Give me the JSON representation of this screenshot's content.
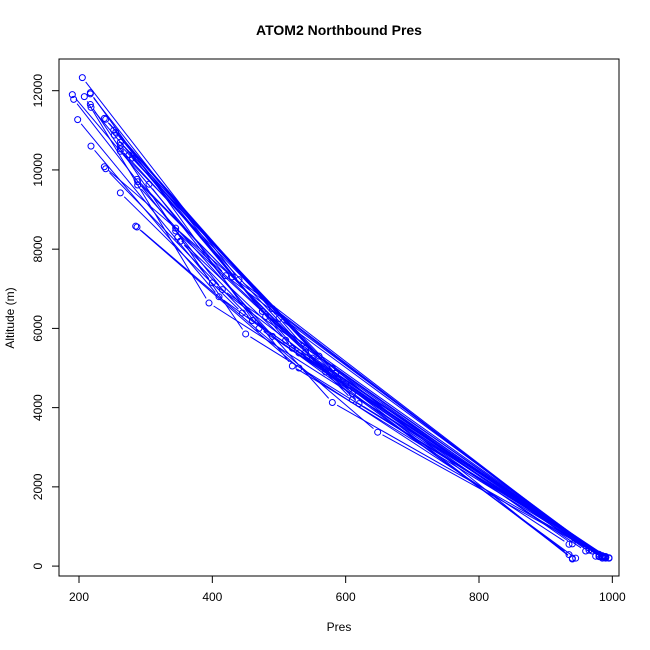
{
  "chart_data": {
    "type": "scatter",
    "title": "ATOM2 Northbound Pres",
    "xlabel": "Pres",
    "ylabel": "Altitude (m)",
    "xlim": [
      170,
      1010
    ],
    "ylim": [
      -250,
      12800
    ],
    "x_ticks": [
      200,
      400,
      600,
      800,
      1000
    ],
    "y_ticks": [
      0,
      2000,
      4000,
      6000,
      8000,
      10000,
      12000
    ],
    "color": "#0000ff",
    "grid": false,
    "legend": "none",
    "series": [
      {
        "points": [
          [
            205,
            12330
          ],
          [
            440,
            7230
          ],
          [
            980,
            260
          ]
        ]
      },
      {
        "points": [
          [
            190,
            11900
          ],
          [
            420,
            7330
          ],
          [
            985,
            240
          ]
        ]
      },
      {
        "points": [
          [
            192,
            11780
          ],
          [
            415,
            6980
          ],
          [
            990,
            210
          ]
        ]
      },
      {
        "points": [
          [
            208,
            11850
          ],
          [
            395,
            6640
          ],
          [
            995,
            200
          ]
        ]
      },
      {
        "points": [
          [
            198,
            11270
          ],
          [
            400,
            7150
          ],
          [
            940,
            200
          ]
        ]
      },
      {
        "points": [
          [
            217,
            11950
          ],
          [
            470,
            6000
          ],
          [
            985,
            230
          ]
        ]
      },
      {
        "points": [
          [
            217,
            11920
          ],
          [
            480,
            6300
          ],
          [
            988,
            240
          ]
        ]
      },
      {
        "points": [
          [
            217,
            11650
          ],
          [
            450,
            5860
          ],
          [
            990,
            220
          ]
        ]
      },
      {
        "points": [
          [
            218,
            11580
          ],
          [
            475,
            6430
          ],
          [
            940,
            180
          ]
        ]
      },
      {
        "points": [
          [
            238,
            11300
          ],
          [
            490,
            6500
          ],
          [
            980,
            240
          ]
        ]
      },
      {
        "points": [
          [
            240,
            11280
          ],
          [
            500,
            6250
          ],
          [
            985,
            250
          ]
        ]
      },
      {
        "points": [
          [
            252,
            11000
          ],
          [
            540,
            5500
          ],
          [
            990,
            210
          ]
        ]
      },
      {
        "points": [
          [
            255,
            10950
          ],
          [
            520,
            5500
          ],
          [
            995,
            200
          ]
        ]
      },
      {
        "points": [
          [
            253,
            10880
          ],
          [
            530,
            5380
          ],
          [
            935,
            290
          ]
        ]
      },
      {
        "points": [
          [
            262,
            10700
          ],
          [
            560,
            5300
          ],
          [
            985,
            230
          ]
        ]
      },
      {
        "points": [
          [
            262,
            10620
          ],
          [
            580,
            5000
          ],
          [
            980,
            250
          ]
        ]
      },
      {
        "points": [
          [
            262,
            10530
          ],
          [
            570,
            4900
          ],
          [
            990,
            240
          ]
        ]
      },
      {
        "points": [
          [
            262,
            10470
          ],
          [
            600,
            4600
          ],
          [
            990,
            220
          ]
        ]
      },
      {
        "points": [
          [
            218,
            10600
          ],
          [
            410,
            6800
          ],
          [
            945,
            200
          ]
        ]
      },
      {
        "points": [
          [
            275,
            10380
          ],
          [
            585,
            4860
          ],
          [
            985,
            200
          ]
        ]
      },
      {
        "points": [
          [
            280,
            10300
          ],
          [
            610,
            4350
          ],
          [
            960,
            380
          ]
        ]
      },
      {
        "points": [
          [
            238,
            10080
          ],
          [
            430,
            7300
          ],
          [
            970,
            380
          ]
        ]
      },
      {
        "points": [
          [
            240,
            10030
          ],
          [
            460,
            6200
          ],
          [
            980,
            300
          ]
        ]
      },
      {
        "points": [
          [
            287,
            9760
          ],
          [
            610,
            4200
          ],
          [
            990,
            230
          ]
        ]
      },
      {
        "points": [
          [
            288,
            9700
          ],
          [
            620,
            4100
          ],
          [
            995,
            210
          ]
        ]
      },
      {
        "points": [
          [
            288,
            9620
          ],
          [
            580,
            4130
          ],
          [
            985,
            260
          ]
        ]
      },
      {
        "points": [
          [
            305,
            9640
          ],
          [
            520,
            5050
          ],
          [
            990,
            200
          ]
        ]
      },
      {
        "points": [
          [
            262,
            9420
          ],
          [
            445,
            6390
          ],
          [
            940,
            560
          ]
        ]
      },
      {
        "points": [
          [
            285,
            8580
          ],
          [
            530,
            5000
          ],
          [
            935,
            550
          ]
        ]
      },
      {
        "points": [
          [
            287,
            8560
          ],
          [
            648,
            3380
          ],
          [
            988,
            220
          ]
        ]
      },
      {
        "points": [
          [
            345,
            8460
          ],
          [
            540,
            5400
          ],
          [
            985,
            260
          ]
        ]
      },
      {
        "points": [
          [
            345,
            8530
          ],
          [
            550,
            5250
          ],
          [
            990,
            240
          ]
        ]
      },
      {
        "points": [
          [
            348,
            8300
          ],
          [
            510,
            5700
          ],
          [
            975,
            250
          ]
        ]
      },
      {
        "points": [
          [
            352,
            8200
          ],
          [
            490,
            5800
          ],
          [
            965,
            400
          ]
        ]
      }
    ]
  }
}
